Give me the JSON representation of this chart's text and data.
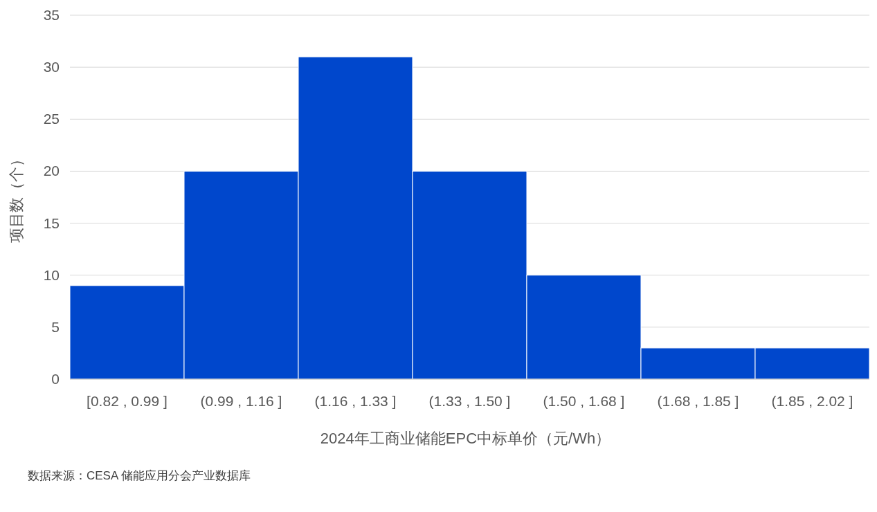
{
  "chart_data": {
    "type": "bar",
    "xlabel": "2024年工商业储能EPC中标单价（元/Wh）",
    "ylabel": "项目数（个）",
    "categories": [
      "[0.82 , 0.99 ]",
      "(0.99 , 1.16 ]",
      "(1.16 , 1.33 ]",
      "(1.33 , 1.50 ]",
      "(1.50 , 1.68 ]",
      "(1.68 , 1.85 ]",
      "(1.85 , 2.02 ]"
    ],
    "values": [
      9,
      20,
      31,
      20,
      10,
      3,
      3
    ],
    "color": "#0047cc",
    "ylim": [
      0,
      35
    ],
    "yticks": [
      0,
      5,
      10,
      15,
      20,
      25,
      30,
      35
    ],
    "grid": "y",
    "annotations": [
      "数据来源：CESA 储能应用分会产业数据库"
    ]
  }
}
